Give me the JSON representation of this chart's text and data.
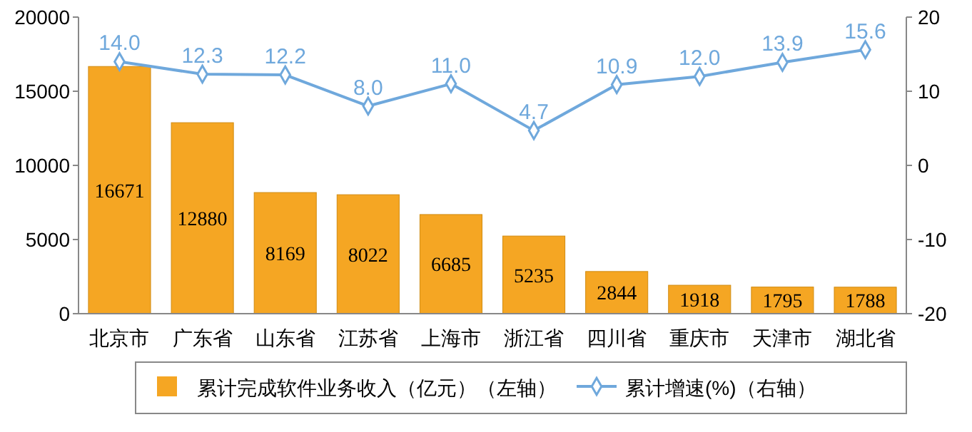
{
  "chart_data": {
    "type": "bar",
    "categories": [
      "北京市",
      "广东省",
      "山东省",
      "江苏省",
      "上海市",
      "浙江省",
      "四川省",
      "重庆市",
      "天津市",
      "湖北省"
    ],
    "series": [
      {
        "name": "累计完成软件业务收入（亿元）（左轴）",
        "color": "#f5a623",
        "values": [
          16671,
          12880,
          8169,
          8022,
          6685,
          5235,
          2844,
          1918,
          1795,
          1788
        ]
      },
      {
        "name": "累计增速(%)（右轴）",
        "type": "line",
        "axis": "y2",
        "color": "#6fa8dc",
        "values": [
          14.0,
          12.3,
          12.2,
          8.0,
          11.0,
          4.7,
          10.9,
          12.0,
          13.9,
          15.6
        ],
        "value_labels": [
          "14.0",
          "12.3",
          "12.2",
          "8.0",
          "11.0",
          "4.7",
          "10.9",
          "12.0",
          "13.9",
          "15.6"
        ]
      }
    ],
    "ylim": [
      0,
      20000
    ],
    "yticks": [
      0,
      5000,
      10000,
      15000,
      20000
    ],
    "y2lim": [
      -20,
      20
    ],
    "y2ticks": [
      -20,
      -10,
      0,
      10,
      20
    ],
    "data_labels": true,
    "marker": "diamond",
    "legend": "bottom",
    "grid": false
  }
}
